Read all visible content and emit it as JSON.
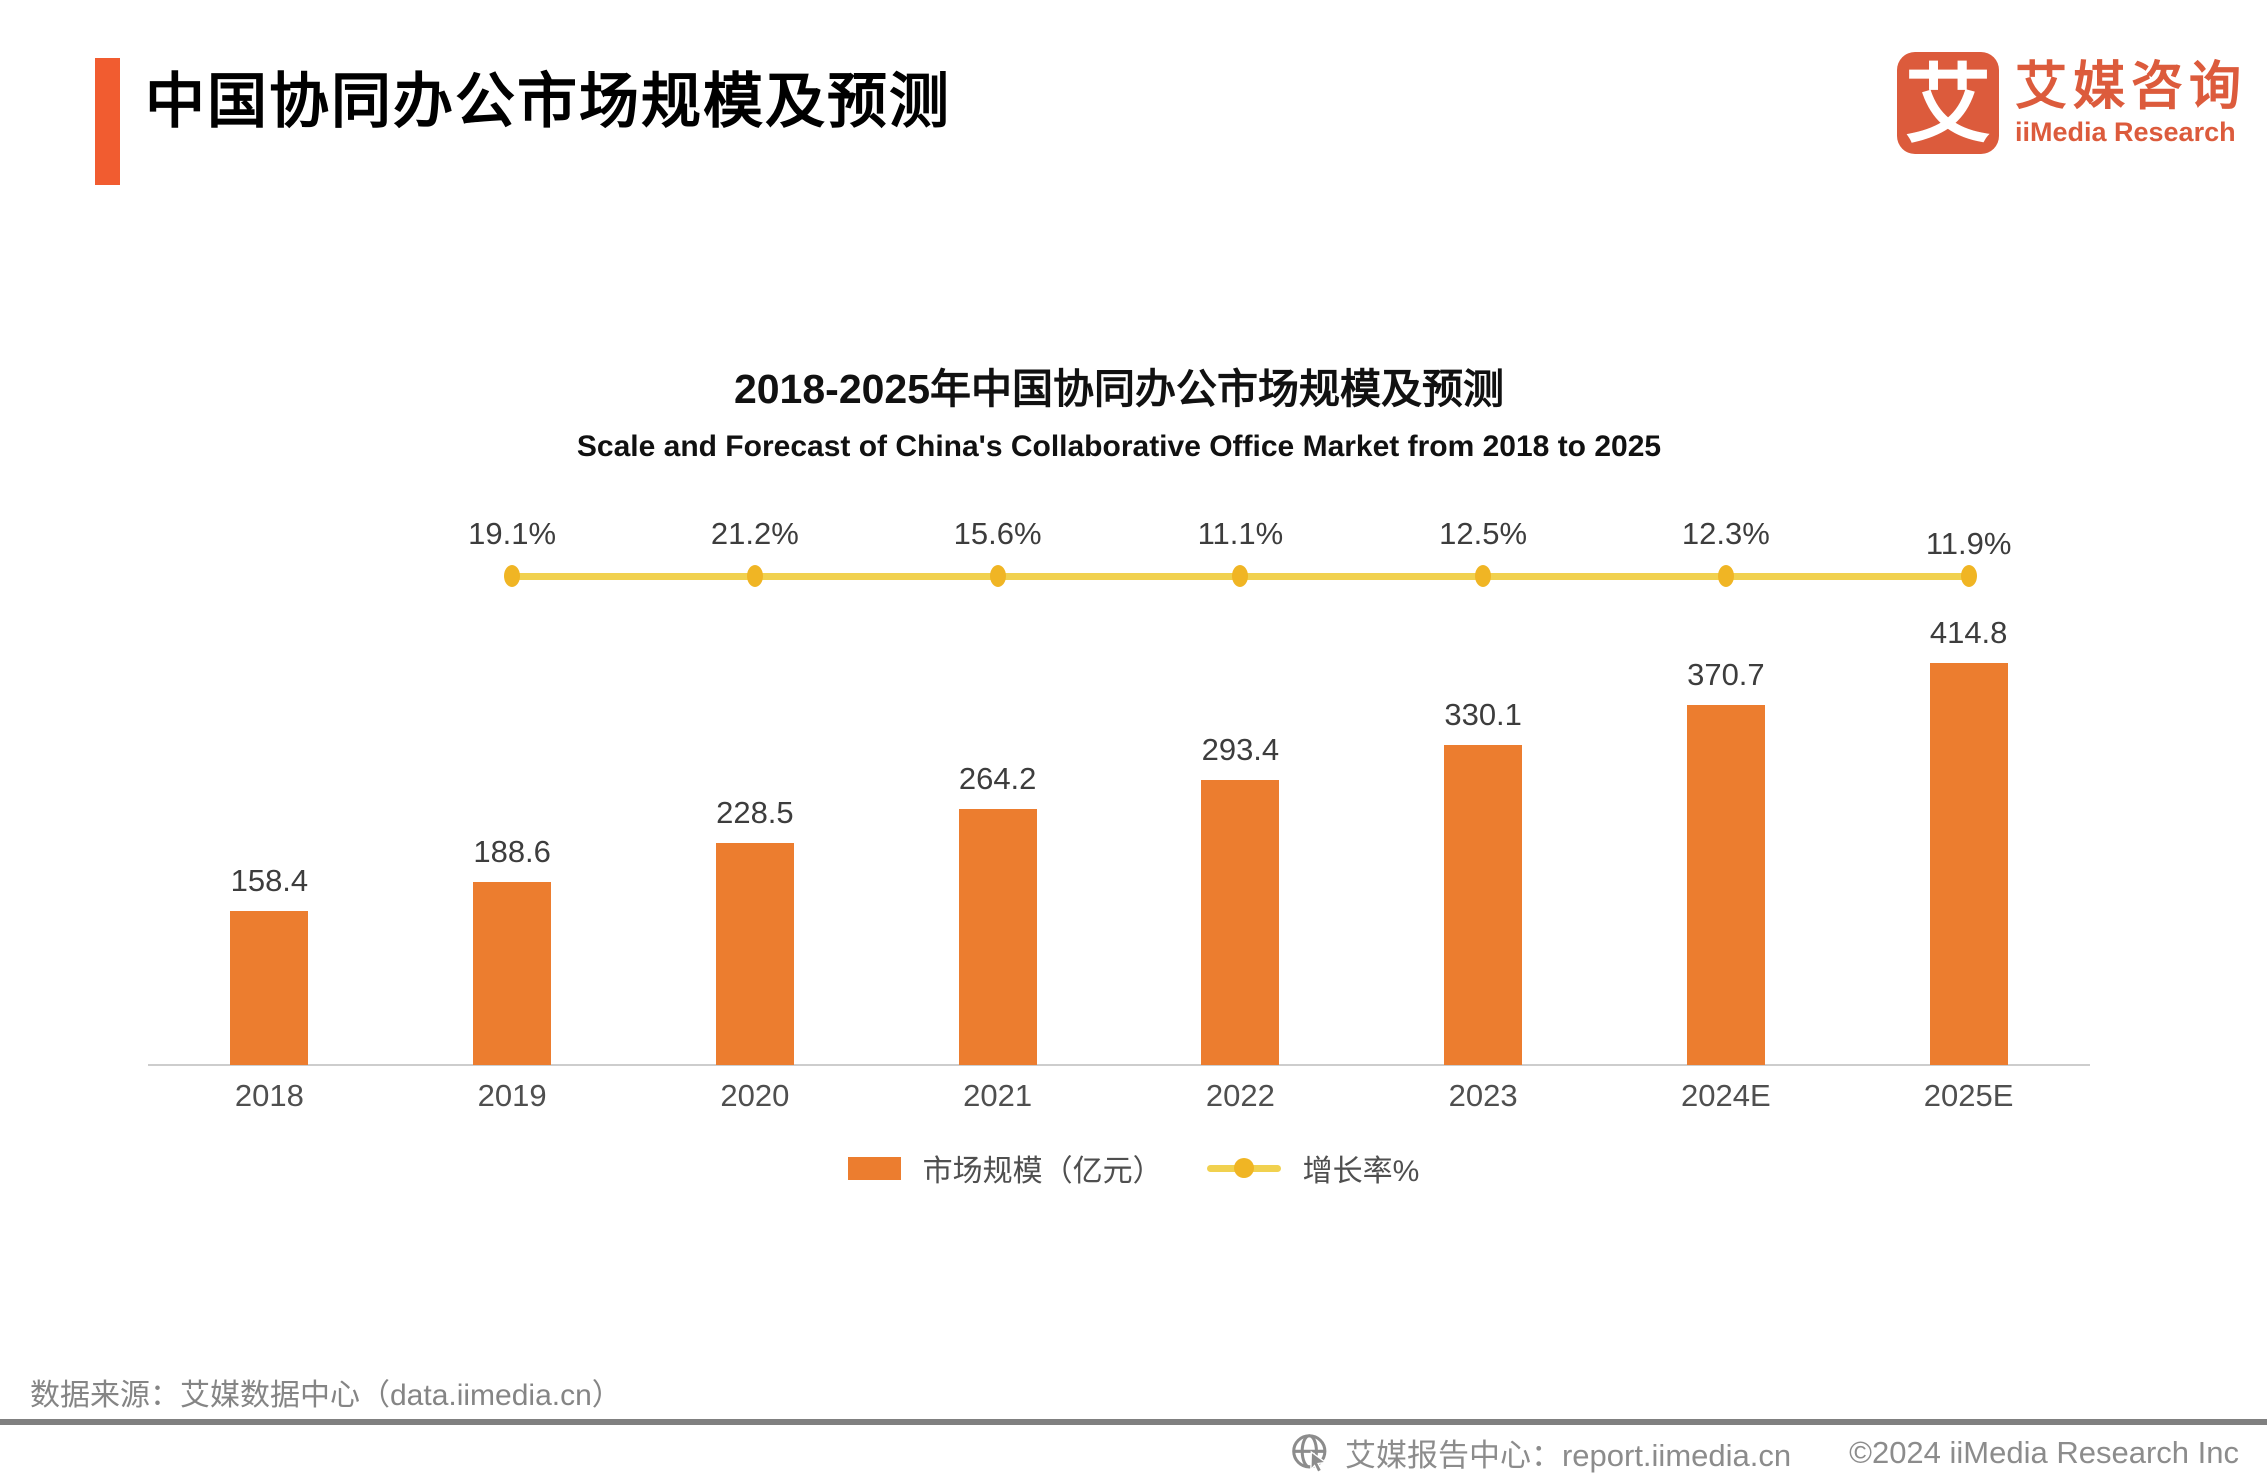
{
  "header": {
    "title": "中国协同办公市场规模及预测",
    "logo": {
      "mark_glyph": "艾",
      "brand_cn": "艾媒咨询",
      "brand_en": "iiMedia Research"
    }
  },
  "chart": {
    "title": "2018-2025年中国协同办公市场规模及预测",
    "subtitle": "Scale and Forecast of China's Collaborative Office Market from 2018 to 2025",
    "legend": {
      "bar_label": "市场规模（亿元）",
      "line_label": "增长率%"
    }
  },
  "chart_data": {
    "type": "bar",
    "title": "2018-2025年中国协同办公市场规模及预测",
    "subtitle": "Scale and Forecast of China's Collaborative Office Market from 2018 to 2025",
    "categories": [
      "2018",
      "2019",
      "2020",
      "2021",
      "2022",
      "2023",
      "2024E",
      "2025E"
    ],
    "series": [
      {
        "name": "市场规模（亿元）",
        "type": "bar",
        "unit": "亿元",
        "values": [
          158.4,
          188.6,
          228.5,
          264.2,
          293.4,
          330.1,
          370.7,
          414.8
        ]
      },
      {
        "name": "增长率%",
        "type": "line",
        "unit": "%",
        "values": [
          null,
          19.1,
          21.2,
          15.6,
          11.1,
          12.5,
          12.3,
          11.9
        ],
        "note": "drawn as flat decorative line above bars"
      }
    ],
    "ylim": [
      0,
      437
    ],
    "grid": false,
    "value_labels": true,
    "legend_position": "bottom"
  },
  "source_note": "数据来源：艾媒数据中心（data.iimedia.cn）",
  "footer": {
    "report_center": "艾媒报告中心：report.iimedia.cn",
    "copyright": "©2024  iiMedia Research Inc"
  },
  "colors": {
    "bar": "#EC7D2F",
    "growth_line": "#F1D14F",
    "growth_dot": "#F0B524",
    "header_accent": "#F15C30",
    "logo": "#DC5B3C",
    "axis_line": "#CDCDCD",
    "label_text": "#3D3D3D",
    "muted_text": "#8C8C8C"
  }
}
